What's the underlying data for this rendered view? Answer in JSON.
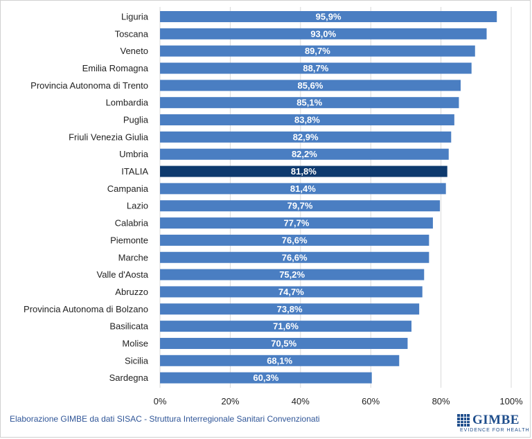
{
  "chart_data": {
    "type": "bar",
    "orientation": "horizontal",
    "categories": [
      "Liguria",
      "Toscana",
      "Veneto",
      "Emilia Romagna",
      "Provincia Autonoma di Trento",
      "Lombardia",
      "Puglia",
      "Friuli Venezia Giulia",
      "Umbria",
      "ITALIA",
      "Campania",
      "Lazio",
      "Calabria",
      "Piemonte",
      "Marche",
      "Valle d'Aosta",
      "Abruzzo",
      "Provincia Autonoma di Bolzano",
      "Basilicata",
      "Molise",
      "Sicilia",
      "Sardegna"
    ],
    "values": [
      95.9,
      93.0,
      89.7,
      88.7,
      85.6,
      85.1,
      83.8,
      82.9,
      82.2,
      81.8,
      81.4,
      79.7,
      77.7,
      76.6,
      76.6,
      75.2,
      74.7,
      73.8,
      71.6,
      70.5,
      68.1,
      60.3
    ],
    "data_labels": [
      "95,9%",
      "93,0%",
      "89,7%",
      "88,7%",
      "85,6%",
      "85,1%",
      "83,8%",
      "82,9%",
      "82,2%",
      "81,8%",
      "81,4%",
      "79,7%",
      "77,7%",
      "76,6%",
      "76,6%",
      "75,2%",
      "74,7%",
      "73,8%",
      "71,6%",
      "70,5%",
      "68,1%",
      "60,3%"
    ],
    "highlight_category": "ITALIA",
    "xlim": [
      0,
      100
    ],
    "x_ticks": [
      0,
      20,
      40,
      60,
      80,
      100
    ],
    "x_tick_labels": [
      "0%",
      "20%",
      "40%",
      "60%",
      "80%",
      "100%"
    ],
    "grid": true,
    "legend": "none",
    "title": "",
    "xlabel": "",
    "ylabel": ""
  },
  "colors": {
    "bar": "#4a7ec2",
    "highlight": "#0e3a6e",
    "grid": "#d9d9d9",
    "source_text": "#2f5597"
  },
  "source_note": "Elaborazione GIMBE da dati SISAC - Struttura Interregionale Sanitari Convenzionati",
  "logo": {
    "name": "GIMBE",
    "tagline": "EVIDENCE FOR HEALTH"
  }
}
